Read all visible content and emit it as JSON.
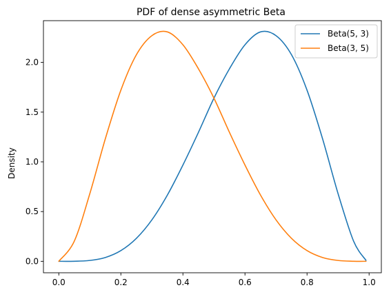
{
  "chart_data": {
    "type": "line",
    "title": "PDF of dense asymmetric Beta",
    "xlabel": "",
    "ylabel": "Density",
    "xlim": [
      -0.0495,
      1.0395
    ],
    "ylim": [
      -0.1152,
      2.4195
    ],
    "x_ticks": [
      0.0,
      0.2,
      0.4,
      0.6,
      0.8,
      1.0
    ],
    "x_tick_labels": [
      "0.0",
      "0.2",
      "0.4",
      "0.6",
      "0.8",
      "1.0"
    ],
    "y_ticks": [
      0.0,
      0.5,
      1.0,
      1.5,
      2.0
    ],
    "y_tick_labels": [
      "0.0",
      "0.5",
      "1.0",
      "1.5",
      "2.0"
    ],
    "grid": false,
    "legend_position": "top-right",
    "x": [
      0.0,
      0.05,
      0.1,
      0.15,
      0.2,
      0.25,
      0.3,
      0.35,
      0.4,
      0.45,
      0.5,
      0.55,
      0.6,
      0.65,
      0.7,
      0.75,
      0.8,
      0.85,
      0.9,
      0.95,
      0.99
    ],
    "series": [
      {
        "name": "Beta(5, 3)",
        "color": "#1f77b4",
        "values": [
          0.0,
          0.0006,
          0.0085,
          0.0383,
          0.1075,
          0.2307,
          0.4168,
          0.6666,
          0.9677,
          1.2962,
          1.6406,
          1.9358,
          2.1772,
          2.3065,
          2.2688,
          2.0764,
          1.7203,
          1.2324,
          0.6804,
          0.203,
          0.0094
        ]
      },
      {
        "name": "Beta(3, 5)",
        "color": "#ff7f0e",
        "values": [
          0.0,
          0.203,
          0.6804,
          1.2324,
          1.7203,
          2.0764,
          2.2688,
          2.3065,
          2.1772,
          1.9358,
          1.6406,
          1.2962,
          0.9677,
          0.6666,
          0.4168,
          0.2307,
          0.1075,
          0.0383,
          0.0085,
          0.0006,
          0.0
        ]
      }
    ]
  }
}
